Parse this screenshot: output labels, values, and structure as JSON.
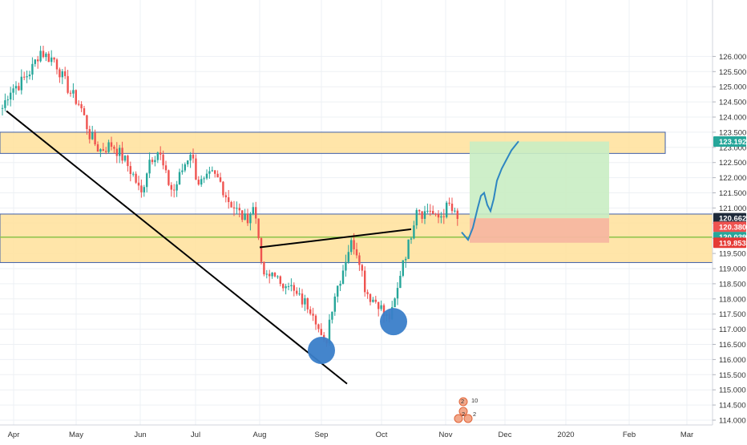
{
  "chart_data": {
    "type": "candlestick",
    "title": "",
    "xlabel": "",
    "ylabel": "",
    "ylim": [
      113.85,
      126.3
    ],
    "y_ticks": [
      "114.000",
      "114.500",
      "115.000",
      "115.500",
      "116.000",
      "116.500",
      "117.000",
      "117.500",
      "118.000",
      "118.500",
      "119.000",
      "119.500",
      "120.000",
      "120.500",
      "121.000",
      "121.500",
      "122.000",
      "122.500",
      "123.000",
      "123.500",
      "124.000",
      "124.500",
      "125.000",
      "125.500",
      "126.000"
    ],
    "x_tick_labels": [
      "Apr",
      "May",
      "Jun",
      "Jul",
      "Aug",
      "Sep",
      "Oct",
      "Nov",
      "Dec",
      "2020",
      "Feb",
      "Mar"
    ],
    "grid": true,
    "colors": {
      "up": "#26a69a",
      "down": "#ef5350",
      "zone_fill": "#ffe19a",
      "zone_border": "#3f5fa8",
      "trendline": "#000000",
      "support_line": "#8bc34a",
      "target_fill": "#c9edc3",
      "stop_fill": "#f7b7a0",
      "projection": "#2e86c1",
      "circle": "#3a7ec9",
      "gridline": "#edf0f4"
    },
    "price_labels": [
      {
        "text": "123.192",
        "value": 123.192,
        "bg": "#26a69a"
      },
      {
        "text": "120.662",
        "value": 120.662,
        "bg": "#1e2a3a"
      },
      {
        "text": "120.380",
        "value": 120.38,
        "bg": "#ef5350"
      },
      {
        "text": "120.039",
        "value": 120.039,
        "bg": "#26a69a"
      },
      {
        "text": "119.853",
        "value": 119.853,
        "bg": "#e53935"
      }
    ],
    "zones": [
      {
        "name": "upper-resistance-zone",
        "from": 122.8,
        "to": 123.5
      },
      {
        "name": "middle-support-zone",
        "from": 119.2,
        "to": 120.8
      }
    ],
    "horizontal_lines": [
      {
        "name": "support-line",
        "value": 120.04
      }
    ],
    "annotations": {
      "marker_counts": [
        "2",
        "10",
        "2",
        "2"
      ]
    }
  }
}
